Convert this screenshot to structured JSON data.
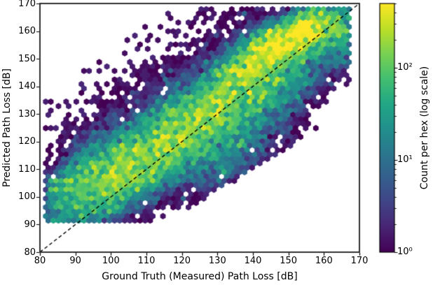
{
  "figure": {
    "kind": "matplotlib-hexbin-figure",
    "background": "#ffffff",
    "text_color": "#000000"
  },
  "chart_data": {
    "type": "heatmap",
    "subtype": "hexbin",
    "title": "",
    "xlabel": "Ground Truth (Measured) Path Loss [dB]",
    "ylabel": "Predicted Path Loss [dB]",
    "xlim": [
      80,
      170
    ],
    "ylim": [
      80,
      170
    ],
    "x_ticks": [
      80,
      90,
      100,
      110,
      120,
      130,
      140,
      150,
      160,
      170
    ],
    "y_ticks": [
      80,
      90,
      100,
      110,
      120,
      130,
      140,
      150,
      160,
      170
    ],
    "grid": false,
    "identity_line": {
      "from": [
        80,
        80
      ],
      "to": [
        170,
        170
      ],
      "style": "dashed",
      "color": "#000000"
    },
    "colorbar": {
      "label": "Count per hex (log scale)",
      "scale": "log",
      "vmin": 1,
      "vmax": 500,
      "major_tick_values": [
        1,
        10,
        100
      ],
      "tick_labels": [
        "10⁰",
        "10¹",
        "10²"
      ],
      "minor_tick_values": [
        2,
        3,
        4,
        5,
        6,
        7,
        8,
        9,
        20,
        30,
        40,
        50,
        60,
        70,
        80,
        90,
        200,
        300,
        400,
        500
      ],
      "position": "right"
    },
    "colormap": {
      "name": "viridis",
      "stops": [
        [
          0.0,
          "#440154"
        ],
        [
          0.1,
          "#482475"
        ],
        [
          0.2,
          "#414487"
        ],
        [
          0.3,
          "#355f8d"
        ],
        [
          0.4,
          "#2a788e"
        ],
        [
          0.5,
          "#21918c"
        ],
        [
          0.6,
          "#22a884"
        ],
        [
          0.7,
          "#44bf70"
        ],
        [
          0.8,
          "#7ad151"
        ],
        [
          0.9,
          "#bddf26"
        ],
        [
          1.0,
          "#fde725"
        ]
      ]
    },
    "density_peak": {
      "x": 151,
      "y": 157,
      "count": 500
    },
    "data_extent": {
      "x": [
        82,
        167
      ],
      "y": [
        91,
        168
      ]
    },
    "hex_radius_px": 4.2,
    "render_seed": 11,
    "density_model": {
      "comment": "approximate generative description of the observed hexbin counts",
      "halos": [
        {
          "amp": 2.6,
          "slope": 0.78,
          "intercept": 37,
          "sigma": 11.5,
          "xc": 124,
          "xw": 40
        },
        {
          "amp": 0.5,
          "slope": 0.78,
          "intercept": 37,
          "sigma": 19,
          "xc": 122,
          "xw": 42
        }
      ],
      "gaussians": [
        {
          "amp": 420,
          "cx": 151.5,
          "cy": 157,
          "sx": 6.5,
          "sy": 3.6,
          "tilt": 0.45
        },
        {
          "amp": 180,
          "cx": 142,
          "cy": 150,
          "sx": 7,
          "sy": 3.8,
          "tilt": 0.7
        },
        {
          "amp": 80,
          "cx": 159,
          "cy": 160.5,
          "sx": 4.5,
          "sy": 3.2,
          "tilt": 0.4
        },
        {
          "amp": 110,
          "cx": 133,
          "cy": 136.5,
          "sx": 8,
          "sy": 5.5,
          "tilt": 0.8
        },
        {
          "amp": 40,
          "cx": 145,
          "cy": 141,
          "sx": 8,
          "sy": 6,
          "tilt": 0.7
        },
        {
          "amp": 90,
          "cx": 123,
          "cy": 126.5,
          "sx": 9,
          "sy": 6.5,
          "tilt": 0.8
        },
        {
          "amp": 85,
          "cx": 112,
          "cy": 116,
          "sx": 9,
          "sy": 6.5,
          "tilt": 0.8
        },
        {
          "amp": 90,
          "cx": 103,
          "cy": 109.5,
          "sx": 8,
          "sy": 6,
          "tilt": 0.7
        },
        {
          "amp": 55,
          "cx": 94,
          "cy": 104,
          "sx": 6.5,
          "sy": 5.5,
          "tilt": 0.6
        },
        {
          "amp": 18,
          "cx": 97,
          "cy": 114,
          "sx": 5.5,
          "sy": 4.5,
          "tilt": 0.5
        },
        {
          "amp": 20,
          "cx": 136,
          "cy": 128,
          "sx": 8,
          "sy": 7,
          "tilt": 0.7
        },
        {
          "amp": 12,
          "cx": 134,
          "cy": 119,
          "sx": 8,
          "sy": 6,
          "tilt": 0.5
        },
        {
          "amp": 5,
          "cx": 128,
          "cy": 110.5,
          "sx": 6,
          "sy": 4,
          "tilt": 0.3
        },
        {
          "amp": 25,
          "cx": 164,
          "cy": 155.5,
          "sx": 3.5,
          "sy": 4.5,
          "tilt": 0
        },
        {
          "amp": 8,
          "cx": 160,
          "cy": 166.5,
          "sx": 5,
          "sy": 2.5,
          "tilt": 0
        }
      ],
      "streaks": [
        {
          "y": 105.3,
          "x0": 83,
          "x1": 137,
          "terms": [
            [
              40,
              87.5,
              7
            ],
            [
              10,
              93,
              26
            ]
          ],
          "floor": 1.2
        },
        {
          "y": 102.3,
          "x0": 83,
          "x1": 119,
          "terms": [
            [
              28,
              86,
              5
            ],
            [
              4,
              95,
              22
            ]
          ],
          "floor": 1.0
        },
        {
          "y": 100.3,
          "x0": 84,
          "x1": 104,
          "terms": [
            [
              3,
              89,
              8
            ]
          ],
          "floor": 0.8
        },
        {
          "y": 92.1,
          "x0": 82,
          "x1": 96,
          "terms": [
            [
              6,
              86,
              7
            ]
          ],
          "floor": 1.0
        }
      ],
      "envelope": {
        "xmin": 81.4,
        "xmax": 167.6,
        "ymin": 91.2,
        "ymax": 168.6,
        "dmin": -36,
        "dmax": 40
      },
      "sprinkle": {
        "p_inner": 0.032,
        "d_inner": 32,
        "p_outer": 0.005,
        "d_outer": 40
      },
      "noise_sigma": 0.62,
      "dropout": 0.06
    }
  }
}
